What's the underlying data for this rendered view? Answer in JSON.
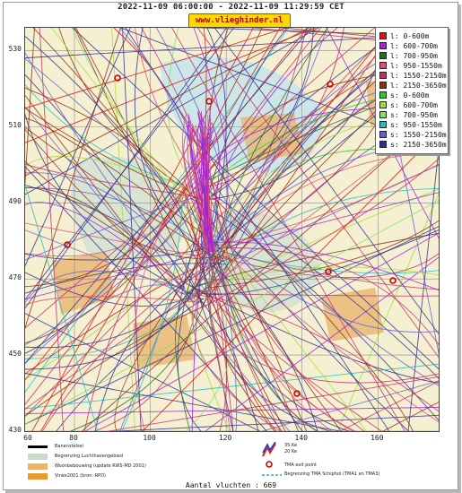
{
  "header": {
    "title": "2022-11-09 06:00:00 - 2022-11-09 11:29:59 CET",
    "brand": "www.vlieghinder.nl"
  },
  "map": {
    "y_ticks": [
      {
        "label": "530",
        "value": 530
      },
      {
        "label": "510",
        "value": 510
      },
      {
        "label": "490",
        "value": 490
      },
      {
        "label": "470",
        "value": 470
      },
      {
        "label": "450",
        "value": 450
      },
      {
        "label": "430",
        "value": 430
      }
    ],
    "x_ticks": [
      {
        "label": "60",
        "value": 60
      },
      {
        "label": "80",
        "value": 80
      },
      {
        "label": "100",
        "value": 100
      },
      {
        "label": "120",
        "value": 120
      },
      {
        "label": "140",
        "value": 140
      },
      {
        "label": "160",
        "value": 160
      }
    ],
    "x_range": [
      67,
      176
    ],
    "y_range": [
      430,
      536
    ],
    "colors": {
      "background": "#f6f0d2",
      "grid": "#8a8a8a",
      "airport": "#cfe0d2",
      "housing": "#e8b36a",
      "water": "#bfe3ef",
      "exit_point": "#cc0000"
    }
  },
  "legend": {
    "entries": [
      {
        "label": "l: 0-600m",
        "color": "#e01010"
      },
      {
        "label": "l: 600-700m",
        "color": "#a020e0"
      },
      {
        "label": "l: 700-950m",
        "color": "#207020"
      },
      {
        "label": "l: 950-1550m",
        "color": "#e05070"
      },
      {
        "label": "l: 1550-2150m",
        "color": "#c0306a"
      },
      {
        "label": "l: 2150-3650m",
        "color": "#8a3010"
      },
      {
        "label": "s: 0-600m",
        "color": "#20d020"
      },
      {
        "label": "s: 600-700m",
        "color": "#a0e030"
      },
      {
        "label": "s: 700-950m",
        "color": "#80e060"
      },
      {
        "label": "s: 950-1550m",
        "color": "#20c0c0"
      },
      {
        "label": "s: 1550-2150m",
        "color": "#6060d0"
      },
      {
        "label": "s: 2150-3650m",
        "color": "#303090"
      }
    ]
  },
  "map_legend": {
    "left": [
      {
        "label": "Banenstelsel",
        "color": "#000000"
      },
      {
        "label": "Begrenzing Luchthavengebied",
        "color": "#c8dcc8"
      },
      {
        "label": "Woonbebouwing (update RWS-MD 2001)",
        "color": "#f0b460"
      },
      {
        "label": "Vinex2001 (bron: RPD)",
        "color": "#e89a30"
      }
    ],
    "contour_35": "35 Ke",
    "contour_20": "20 Ke",
    "exit_point": "TMA exit point",
    "tma": "Begrenzing TMA Schiphol  (TMA1 en TMA3)"
  },
  "footer": {
    "count": "Aantal vluchten : 669"
  }
}
